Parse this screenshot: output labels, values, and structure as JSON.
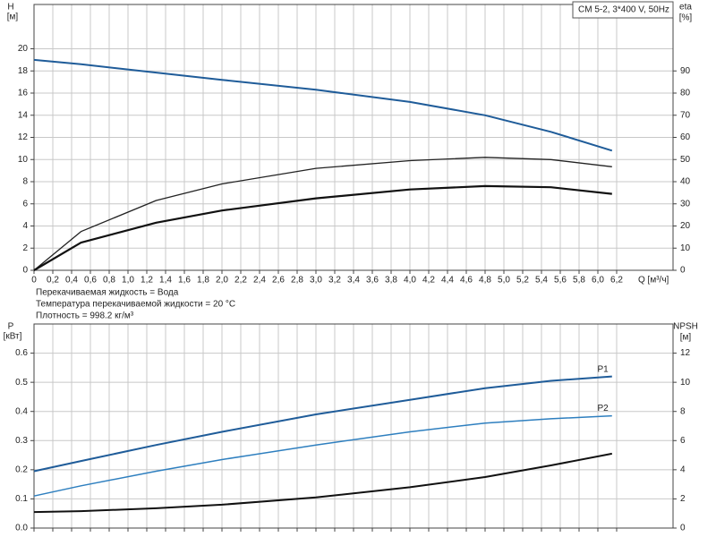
{
  "chart_data": [
    {
      "type": "line",
      "title": "CM 5-2, 3*400 V, 50Hz",
      "ylabel": "H",
      "yunit": "[м]",
      "y2label": "eta",
      "y2unit": "[%]",
      "xlabel": "Q [м³/ч]",
      "x": [
        0,
        0.5,
        1.3,
        2,
        3,
        4,
        4.8,
        5.5,
        6.15
      ],
      "xlim": [
        0,
        6.8
      ],
      "ylim": [
        0,
        24
      ],
      "y2lim": [
        0,
        120
      ],
      "xticks": [
        0,
        {
          "value": 0.2,
          "label": "0,2"
        },
        {
          "value": 0.4,
          "label": "0,4"
        },
        {
          "value": 0.6,
          "label": "0,6"
        },
        {
          "value": 0.8,
          "label": "0,8"
        },
        {
          "value": 1.0,
          "label": "1,0"
        },
        {
          "value": 1.2,
          "label": "1,2"
        },
        {
          "value": 1.4,
          "label": "1,4"
        },
        {
          "value": 1.6,
          "label": "1,6"
        },
        {
          "value": 1.8,
          "label": "1,8"
        },
        {
          "value": 2.0,
          "label": "2,0"
        },
        {
          "value": 2.2,
          "label": "2,2"
        },
        {
          "value": 2.4,
          "label": "2,4"
        },
        {
          "value": 2.6,
          "label": "2,6"
        },
        {
          "value": 2.8,
          "label": "2,8"
        },
        {
          "value": 3.0,
          "label": "3,0"
        },
        {
          "value": 3.2,
          "label": "3,2"
        },
        {
          "value": 3.4,
          "label": "3,4"
        },
        {
          "value": 3.6,
          "label": "3,6"
        },
        {
          "value": 3.8,
          "label": "3,8"
        },
        {
          "value": 4.0,
          "label": "4,0"
        },
        {
          "value": 4.2,
          "label": "4,2"
        },
        {
          "value": 4.4,
          "label": "4,4"
        },
        {
          "value": 4.6,
          "label": "4,6"
        },
        {
          "value": 4.8,
          "label": "4,8"
        },
        {
          "value": 5.0,
          "label": "5,0"
        },
        {
          "value": 5.2,
          "label": "5,2"
        },
        {
          "value": 5.4,
          "label": "5,4"
        },
        {
          "value": 5.6,
          "label": "5,6"
        },
        {
          "value": 5.8,
          "label": "5,8"
        },
        {
          "value": 6.0,
          "label": "6,0"
        },
        {
          "value": 6.2,
          "label": "6,2"
        }
      ],
      "yticks": [
        0,
        2,
        4,
        6,
        8,
        10,
        12,
        14,
        16,
        18,
        20
      ],
      "y2ticks": [
        0,
        10,
        20,
        30,
        40,
        50,
        60,
        70,
        80,
        90
      ],
      "grid": true,
      "show_xtick_labels": true,
      "series": [
        {
          "color": "#1f5c99",
          "width": 2,
          "values": [
            19,
            18.6,
            17.85,
            17.2,
            16.3,
            15.2,
            14.0,
            12.5,
            10.8
          ]
        },
        {
          "color": "#222222",
          "width": 1.3,
          "axis": "y2",
          "values": [
            0,
            17.5,
            31.5,
            39,
            46,
            49.5,
            51,
            50,
            46.75
          ]
        },
        {
          "color": "#111111",
          "width": 2.2,
          "axis": "y2",
          "values": [
            0,
            12.5,
            21.5,
            27,
            32.5,
            36.5,
            38,
            37.5,
            34.5
          ]
        }
      ],
      "annotations": [
        "Перекачиваемая жидкость = Вода",
        "Температура перекачиваемой жидкости = 20 °C",
        "Плотность = 998.2 кг/м³"
      ]
    },
    {
      "type": "line",
      "ylabel": "P",
      "yunit": "[кВт]",
      "y2label": "NPSH",
      "y2unit": "[м]",
      "x": [
        0,
        0.5,
        1.3,
        2,
        3,
        4,
        4.8,
        5.5,
        6.15
      ],
      "xlim": [
        0,
        6.8
      ],
      "ylim": [
        0,
        0.7
      ],
      "y2lim": [
        0,
        14
      ],
      "xticks": [
        0,
        0.2,
        0.4,
        0.6,
        0.8,
        1.0,
        1.2,
        1.4,
        1.6,
        1.8,
        2.0,
        2.2,
        2.4,
        2.6,
        2.8,
        3.0,
        3.2,
        3.4,
        3.6,
        3.8,
        4.0,
        4.2,
        4.4,
        4.6,
        4.8,
        5.0,
        5.2,
        5.4,
        5.6,
        5.8,
        6.0,
        6.2
      ],
      "yticks": [
        {
          "value": 0,
          "label": "0.0"
        },
        0.1,
        0.2,
        0.3,
        0.4,
        0.5,
        0.6
      ],
      "y2ticks": [
        0,
        2,
        4,
        6,
        8,
        10,
        12
      ],
      "grid": true,
      "show_xtick_labels": false,
      "series": [
        {
          "name": "P1",
          "color": "#1f5c99",
          "width": 2,
          "values": [
            0.195,
            0.23,
            0.285,
            0.33,
            0.39,
            0.44,
            0.48,
            0.505,
            0.52
          ]
        },
        {
          "name": "P2",
          "color": "#2e7fbf",
          "width": 1.5,
          "values": [
            0.11,
            0.145,
            0.195,
            0.235,
            0.285,
            0.33,
            0.36,
            0.375,
            0.385
          ]
        },
        {
          "color": "#111111",
          "width": 2,
          "axis": "y2",
          "values": [
            1.1,
            1.16,
            1.36,
            1.6,
            2.1,
            2.8,
            3.5,
            4.3,
            5.1
          ]
        }
      ]
    }
  ]
}
